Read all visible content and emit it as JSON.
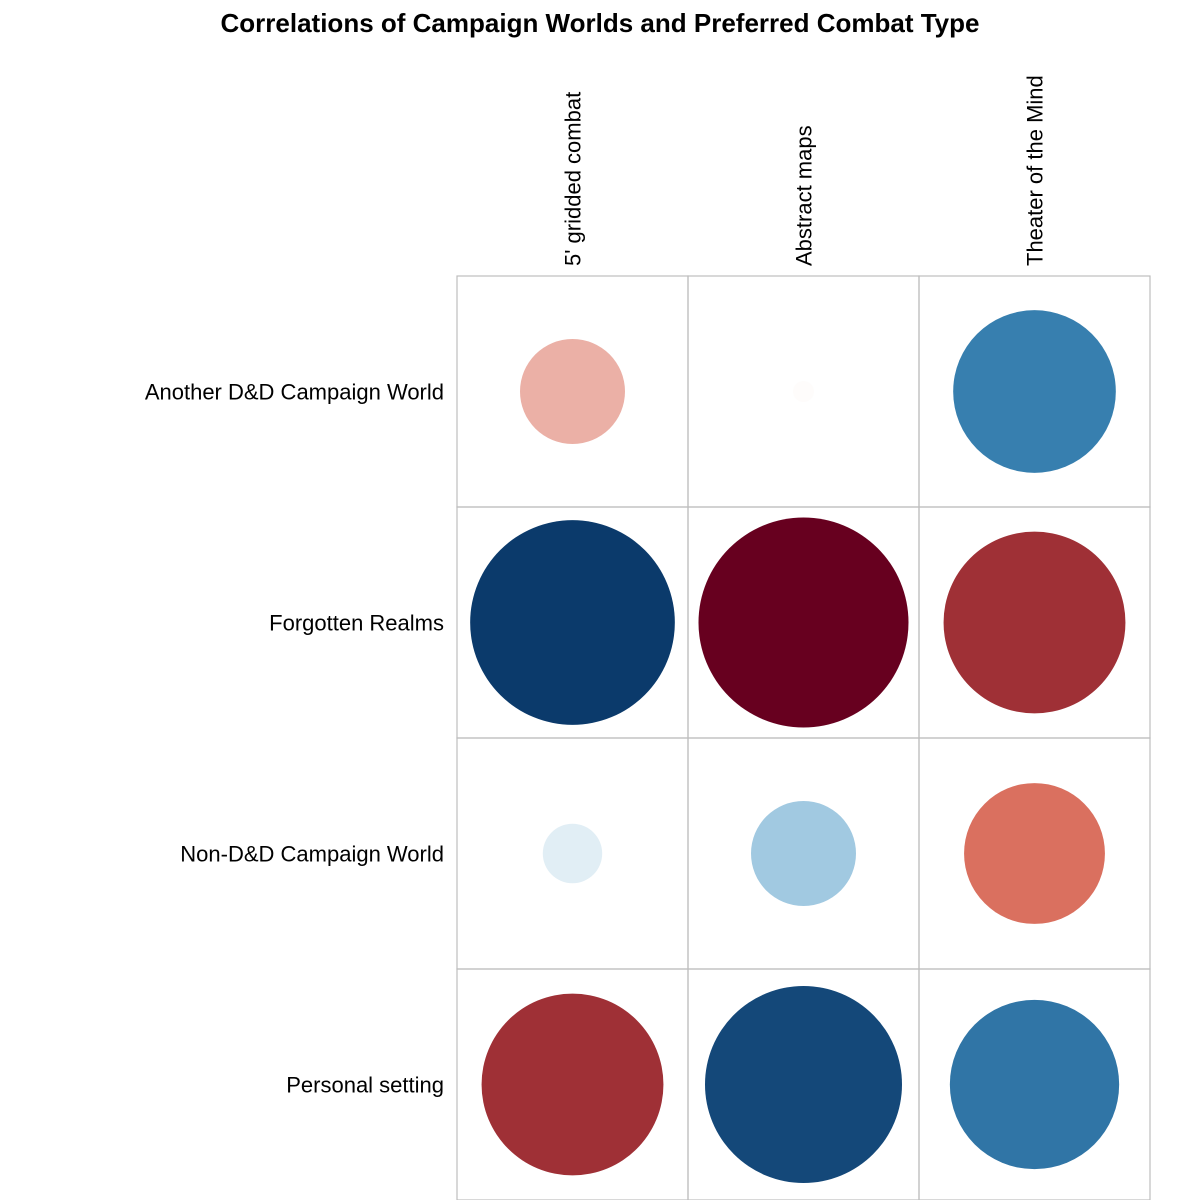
{
  "chart_data": {
    "type": "heatmap",
    "title": "Correlations of Campaign Worlds and Preferred Combat Type",
    "xlabel": "",
    "ylabel": "",
    "rows": [
      "Another D&D Campaign World",
      "Forgotten Realms",
      "Non-D&D Campaign World",
      "Personal setting"
    ],
    "columns": [
      "5' gridded combat",
      "Abstract maps",
      "Theater of the Mind"
    ],
    "value_range": [
      -1,
      1
    ],
    "values": [
      [
        -0.25,
        -0.01,
        0.6
      ],
      [
        0.95,
        -1.0,
        -0.75
      ],
      [
        0.08,
        0.25,
        -0.45
      ],
      [
        -0.75,
        0.88,
        0.65
      ]
    ],
    "legend": "none",
    "colors": {
      "neg_strong": "#67001F",
      "neg_mid": "#D6604D",
      "neutral": "#FFFFFF",
      "pos_mid": "#4393C3",
      "pos_strong": "#053061"
    }
  }
}
